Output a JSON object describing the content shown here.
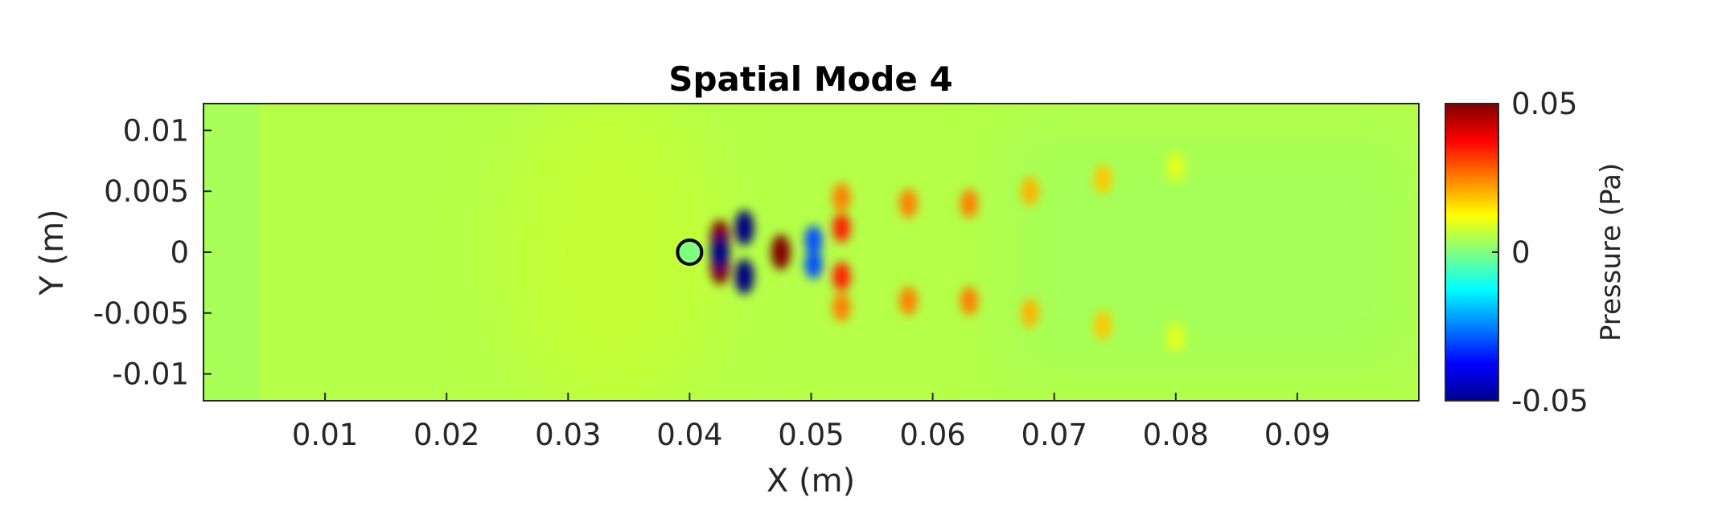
{
  "chart_data": {
    "type": "heatmap",
    "title": "Spatial Mode 4",
    "xlabel": "X (m)",
    "ylabel": "Y (m)",
    "xlim": [
      0,
      0.1
    ],
    "ylim": [
      -0.0122,
      0.0122
    ],
    "x_ticks": [
      0.01,
      0.02,
      0.03,
      0.04,
      0.05,
      0.06,
      0.07,
      0.08,
      0.09
    ],
    "x_tick_labels": [
      "0.01",
      "0.02",
      "0.03",
      "0.04",
      "0.05",
      "0.06",
      "0.07",
      "0.08",
      "0.09"
    ],
    "y_ticks": [
      0.01,
      0.005,
      0,
      -0.005,
      -0.01
    ],
    "y_tick_labels": [
      "0.01",
      "0.005",
      "0",
      "-0.005",
      "-0.01"
    ],
    "colorbar": {
      "label": "Pressure (Pa)",
      "colormap": "jet",
      "range": [
        -0.05,
        0.05
      ],
      "ticks": [
        0.05,
        0,
        -0.05
      ],
      "tick_labels": [
        "0.05",
        "0",
        "-0.05"
      ]
    },
    "field_description": "Acoustic pressure field of spatial mode 4 around a cylinder at x≈0.04 m, y=0; alternating positive/negative lobes downstream forming a wake pattern that decays toward x=0.1 m.",
    "obstacle": {
      "shape": "circle",
      "center": [
        0.04,
        0
      ],
      "radius": 0.001
    },
    "features": [
      {
        "x": 0.0425,
        "y": 0.0012,
        "value": 0.05
      },
      {
        "x": 0.0425,
        "y": -0.0012,
        "value": 0.05
      },
      {
        "x": 0.0445,
        "y": 0.002,
        "value": -0.05
      },
      {
        "x": 0.0445,
        "y": -0.002,
        "value": -0.05
      },
      {
        "x": 0.0425,
        "y": 0,
        "value": -0.05
      },
      {
        "x": 0.0475,
        "y": 0,
        "value": 0.05
      },
      {
        "x": 0.0502,
        "y": 0.001,
        "value": -0.03
      },
      {
        "x": 0.0502,
        "y": -0.001,
        "value": -0.03
      },
      {
        "x": 0.0525,
        "y": 0.0045,
        "value": 0.025
      },
      {
        "x": 0.0525,
        "y": -0.0045,
        "value": 0.025
      },
      {
        "x": 0.0525,
        "y": 0.002,
        "value": 0.035
      },
      {
        "x": 0.0525,
        "y": -0.002,
        "value": 0.035
      },
      {
        "x": 0.058,
        "y": 0.004,
        "value": 0.025
      },
      {
        "x": 0.058,
        "y": -0.004,
        "value": 0.025
      },
      {
        "x": 0.063,
        "y": 0.004,
        "value": 0.025
      },
      {
        "x": 0.063,
        "y": -0.004,
        "value": 0.025
      },
      {
        "x": 0.068,
        "y": 0.005,
        "value": 0.02
      },
      {
        "x": 0.068,
        "y": -0.005,
        "value": 0.02
      },
      {
        "x": 0.074,
        "y": 0.006,
        "value": 0.018
      },
      {
        "x": 0.074,
        "y": -0.006,
        "value": 0.018
      },
      {
        "x": 0.08,
        "y": 0.007,
        "value": 0.01
      },
      {
        "x": 0.08,
        "y": -0.007,
        "value": 0.01
      }
    ]
  }
}
